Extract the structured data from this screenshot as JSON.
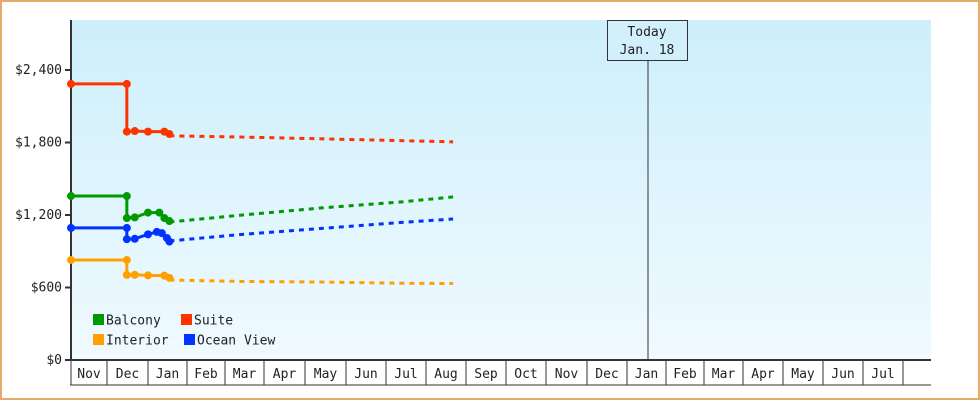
{
  "chart_data": {
    "type": "line",
    "title": "",
    "xlabel": "",
    "ylabel": "",
    "ylim": [
      0,
      2800
    ],
    "y_ticks": [
      "$0",
      "$600",
      "$1,200",
      "$1,800",
      "$2,400"
    ],
    "y_tick_values": [
      0,
      600,
      1200,
      1800,
      2400
    ],
    "x_ticks": [
      "Nov",
      "Dec",
      "Jan",
      "Feb",
      "Mar",
      "Apr",
      "May",
      "Jun",
      "Jul",
      "Aug",
      "Sep",
      "Oct",
      "Nov",
      "Dec",
      "Jan",
      "Feb",
      "Mar",
      "Apr",
      "May",
      "Jun",
      "Jul"
    ],
    "grid": false,
    "legend_placement": "bottom-left",
    "today_marker": {
      "line1": "Today",
      "line2": "Jan. 18",
      "date": "Jan 18"
    },
    "series": [
      {
        "name": "Balcony",
        "color": "#009900",
        "history": [
          [
            "Nov 1",
            1357
          ],
          [
            "Dec 16",
            1357
          ],
          [
            "Dec 16",
            1175
          ],
          [
            "Dec 22",
            1180
          ],
          [
            "Jan 1",
            1220
          ],
          [
            "Jan 10",
            1220
          ],
          [
            "Jan 14",
            1175
          ],
          [
            "Jan 18",
            1150
          ]
        ],
        "forecast": [
          [
            "Jan 18",
            1142
          ],
          [
            "Mar 15",
            1200
          ],
          [
            "May 15",
            1260
          ],
          [
            "Jul 15",
            1310
          ],
          [
            "Aug 22",
            1350
          ]
        ]
      },
      {
        "name": "Suite",
        "color": "#ff3300",
        "history": [
          [
            "Nov 1",
            2285
          ],
          [
            "Dec 16",
            2285
          ],
          [
            "Dec 16",
            1890
          ],
          [
            "Dec 22",
            1895
          ],
          [
            "Jan 1",
            1890
          ],
          [
            "Jan 14",
            1890
          ],
          [
            "Jan 18",
            1870
          ]
        ],
        "forecast": [
          [
            "Jan 18",
            1855
          ],
          [
            "Mar 15",
            1845
          ],
          [
            "May 15",
            1830
          ],
          [
            "Jul 15",
            1815
          ],
          [
            "Aug 22",
            1805
          ]
        ]
      },
      {
        "name": "Interior",
        "color": "#ffa000",
        "history": [
          [
            "Nov 1",
            828
          ],
          [
            "Dec 16",
            828
          ],
          [
            "Dec 16",
            704
          ],
          [
            "Dec 22",
            705
          ],
          [
            "Jan 1",
            700
          ],
          [
            "Jan 14",
            698
          ],
          [
            "Jan 18",
            680
          ]
        ],
        "forecast": [
          [
            "Jan 18",
            662
          ],
          [
            "Mar 15",
            650
          ],
          [
            "May 15",
            645
          ],
          [
            "Jul 15",
            635
          ],
          [
            "Aug 22",
            633
          ]
        ]
      },
      {
        "name": "Ocean View",
        "color": "#0033ff",
        "history": [
          [
            "Nov 1",
            1093
          ],
          [
            "Dec 16",
            1093
          ],
          [
            "Dec 16",
            1000
          ],
          [
            "Dec 22",
            1003
          ],
          [
            "Jan 1",
            1040
          ],
          [
            "Jan 8",
            1060
          ],
          [
            "Jan 12",
            1050
          ],
          [
            "Jan 16",
            1010
          ],
          [
            "Jan 18",
            980
          ]
        ],
        "forecast": [
          [
            "Jan 18",
            985
          ],
          [
            "Mar 15",
            1040
          ],
          [
            "May 15",
            1090
          ],
          [
            "Jul 15",
            1140
          ],
          [
            "Aug 22",
            1167
          ]
        ]
      }
    ]
  }
}
